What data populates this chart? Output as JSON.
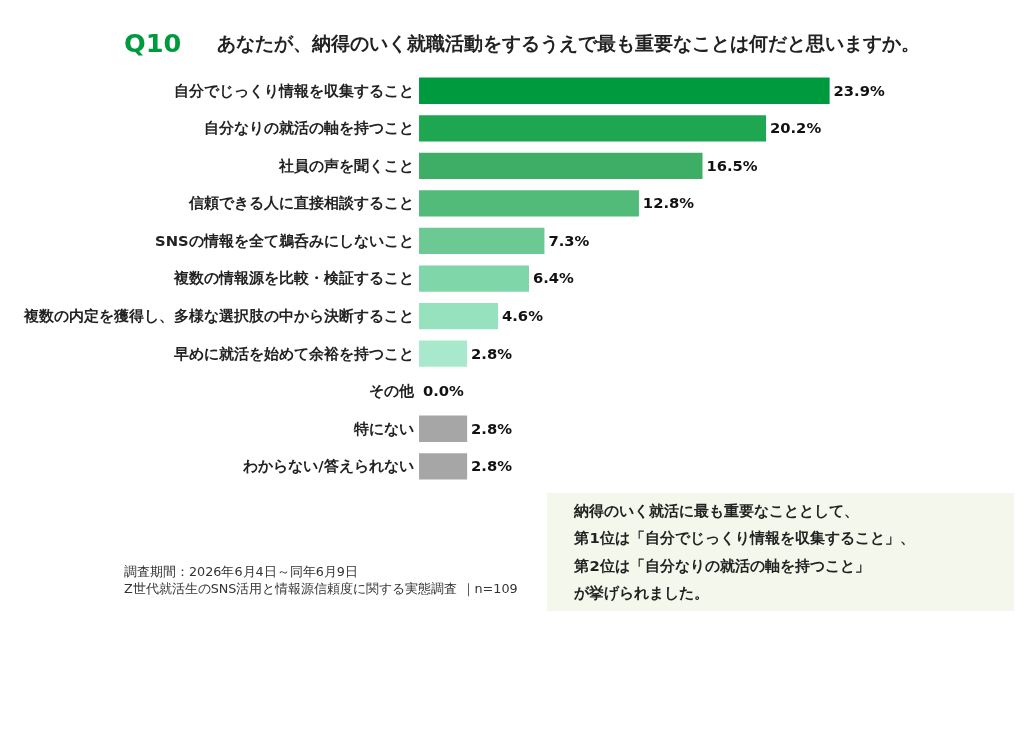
{
  "chart_data": {
    "type": "bar",
    "orientation": "horizontal",
    "title": "Q10",
    "subtitle": "あなたが、納得のいく就職活動をするうえで最も重要なことは何だと思いますか。",
    "categories": [
      "自分でじっくり情報を収集すること",
      "自分なりの就活の軸を持つこと",
      "社員の声を聞くこと",
      "信頼できる人に直接相談すること",
      "SNSの情報を全て鵜呑みにしないこと",
      "複数の情報源を比較・検証すること",
      "複数の内定を獲得し、多様な選択肢の中から決断すること",
      "早めに就活を始めて余裕を持つこと",
      "その他",
      "特にない",
      "わからない/答えられない"
    ],
    "values": [
      23.9,
      20.2,
      16.5,
      12.8,
      7.3,
      6.4,
      4.6,
      2.8,
      0.0,
      2.8,
      2.8
    ],
    "value_labels": [
      "23.9%",
      "20.2%",
      "16.5%",
      "12.8%",
      "7.3%",
      "6.4%",
      "4.6%",
      "2.8%",
      "0.0%",
      "2.8%",
      "2.8%"
    ],
    "colors": [
      "#009a3e",
      "#1fa650",
      "#3eae66",
      "#52bb7a",
      "#6cc994",
      "#7fd6a8",
      "#96e2be",
      "#a8e8cc",
      "#b5ecd5",
      "#a6a6a6",
      "#a6a6a6"
    ],
    "annotations": [
      "納得のいく就活に最も重要なこととして、",
      "第1位は「自分でじっくり情報を収集すること」、",
      "第2位は「自分なりの就活の軸を持つこと」",
      "が挙げられました。",
      "調査期間：2026年6月4日～同年6月9日",
      "Z世代就活生のSNS活用と情報源信頼度に関する実態調査 ｜n=109"
    ]
  }
}
